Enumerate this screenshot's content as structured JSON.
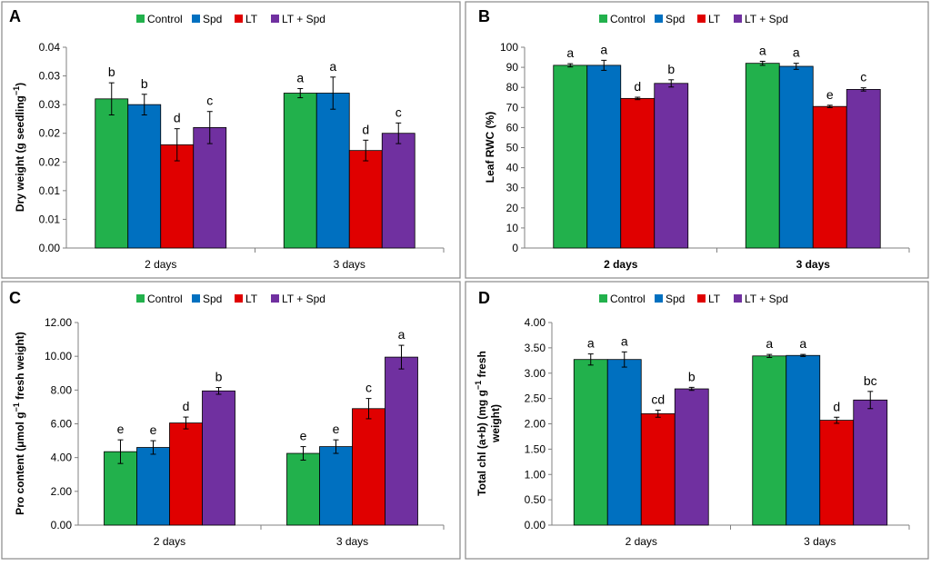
{
  "colors": {
    "Control": "#22b14c",
    "Spd": "#0070c0",
    "LT": "#e00000",
    "LT + Spd": "#7030a0",
    "frame": "#888888",
    "axis": "#808080",
    "text": "#000000"
  },
  "chart_data": [
    {
      "panel": "A",
      "type": "bar",
      "title": "",
      "ylabel_main": "Dry weight (g seedling",
      "ylabel_sup": "−1",
      "ylabel_tail": ")",
      "ylabel_bold": true,
      "xtick_bold": false,
      "categories": [
        "2 days",
        "3 days"
      ],
      "legend": [
        "Control",
        "Spd",
        "LT",
        "LT + Spd"
      ],
      "ylim": [
        0,
        0.035
      ],
      "yticks": [
        0,
        0.005,
        0.01,
        0.015,
        0.02,
        0.025,
        0.03,
        0.035
      ],
      "ytick_labels": [
        "0.00",
        "0.01",
        "0.01",
        "0.02",
        "0.02",
        "0.03",
        "0.03",
        "0.04"
      ],
      "series": [
        {
          "name": "Control",
          "values": [
            0.026,
            0.027
          ],
          "errors": [
            0.0028,
            0.0008
          ],
          "letters": [
            "b",
            "a"
          ]
        },
        {
          "name": "Spd",
          "values": [
            0.025,
            0.027
          ],
          "errors": [
            0.0018,
            0.0028
          ],
          "letters": [
            "b",
            "a"
          ]
        },
        {
          "name": "LT",
          "values": [
            0.018,
            0.017
          ],
          "errors": [
            0.0028,
            0.0018
          ],
          "letters": [
            "d",
            "d"
          ]
        },
        {
          "name": "LT + Spd",
          "values": [
            0.021,
            0.02
          ],
          "errors": [
            0.0028,
            0.0018
          ],
          "letters": [
            "c",
            "c"
          ]
        }
      ]
    },
    {
      "panel": "B",
      "type": "bar",
      "title": "",
      "ylabel_main": "Leaf RWC  (%)",
      "ylabel_sup": "",
      "ylabel_tail": "",
      "ylabel_bold": true,
      "xtick_bold": true,
      "categories": [
        "2 days",
        "3 days"
      ],
      "legend": [
        "Control",
        "Spd",
        "LT",
        "LT + Spd"
      ],
      "ylim": [
        0,
        100
      ],
      "yticks": [
        0,
        10,
        20,
        30,
        40,
        50,
        60,
        70,
        80,
        90,
        100
      ],
      "ytick_labels": [
        "0",
        "10",
        "20",
        "30",
        "40",
        "50",
        "60",
        "70",
        "80",
        "90",
        "100"
      ],
      "series": [
        {
          "name": "Control",
          "values": [
            91,
            92
          ],
          "errors": [
            0.8,
            1.0
          ],
          "letters": [
            "a",
            "a"
          ]
        },
        {
          "name": "Spd",
          "values": [
            91,
            90.5
          ],
          "errors": [
            2.5,
            1.5
          ],
          "letters": [
            "a",
            "a"
          ]
        },
        {
          "name": "LT",
          "values": [
            74.5,
            70.5
          ],
          "errors": [
            0.6,
            0.6
          ],
          "letters": [
            "d",
            "e"
          ]
        },
        {
          "name": "LT + Spd",
          "values": [
            82,
            79
          ],
          "errors": [
            1.8,
            0.8
          ],
          "letters": [
            "b",
            "c"
          ]
        }
      ]
    },
    {
      "panel": "C",
      "type": "bar",
      "title": "",
      "ylabel_main": "Pro content (μmol g",
      "ylabel_sup": "−1",
      "ylabel_tail": " fresh weight)",
      "ylabel_bold": true,
      "xtick_bold": false,
      "categories": [
        "2 days",
        "3 days"
      ],
      "legend": [
        "Control",
        "Spd",
        "LT",
        "LT + Spd"
      ],
      "ylim": [
        0,
        12
      ],
      "yticks": [
        0,
        2,
        4,
        6,
        8,
        10,
        12
      ],
      "ytick_labels": [
        "0.00",
        "2.00",
        "4.00",
        "6.00",
        "8.00",
        "10.00",
        "12.00"
      ],
      "series": [
        {
          "name": "Control",
          "values": [
            4.35,
            4.25
          ],
          "errors": [
            0.7,
            0.4
          ],
          "letters": [
            "e",
            "e"
          ]
        },
        {
          "name": "Spd",
          "values": [
            4.6,
            4.65
          ],
          "errors": [
            0.4,
            0.4
          ],
          "letters": [
            "e",
            "e"
          ]
        },
        {
          "name": "LT",
          "values": [
            6.05,
            6.9
          ],
          "errors": [
            0.35,
            0.6
          ],
          "letters": [
            "d",
            "c"
          ]
        },
        {
          "name": "LT + Spd",
          "values": [
            7.95,
            9.95
          ],
          "errors": [
            0.2,
            0.7
          ],
          "letters": [
            "b",
            "a"
          ]
        }
      ]
    },
    {
      "panel": "D",
      "type": "bar",
      "title": "",
      "ylabel_main": "Total chl (a+b) (mg  g",
      "ylabel_sup": "−1",
      "ylabel_tail": " fresh",
      "ylabel_line2": "weight)",
      "ylabel_bold": true,
      "xtick_bold": false,
      "categories": [
        "2 days",
        "3 days"
      ],
      "legend": [
        "Control",
        "Spd",
        "LT",
        "LT + Spd"
      ],
      "ylim": [
        0,
        4
      ],
      "yticks": [
        0,
        0.5,
        1,
        1.5,
        2,
        2.5,
        3,
        3.5,
        4
      ],
      "ytick_labels": [
        "0.00",
        "0.50",
        "1.00",
        "1.50",
        "2.00",
        "2.50",
        "3.00",
        "3.50",
        "4.00"
      ],
      "series": [
        {
          "name": "Control",
          "values": [
            3.27,
            3.34
          ],
          "errors": [
            0.11,
            0.03
          ],
          "letters": [
            "a",
            "a"
          ]
        },
        {
          "name": "Spd",
          "values": [
            3.27,
            3.35
          ],
          "errors": [
            0.15,
            0.02
          ],
          "letters": [
            "a",
            "a"
          ]
        },
        {
          "name": "LT",
          "values": [
            2.2,
            2.07
          ],
          "errors": [
            0.07,
            0.06
          ],
          "letters": [
            "cd",
            "d"
          ]
        },
        {
          "name": "LT + Spd",
          "values": [
            2.69,
            2.47
          ],
          "errors": [
            0.03,
            0.17
          ],
          "letters": [
            "b",
            "bc"
          ]
        }
      ]
    }
  ]
}
